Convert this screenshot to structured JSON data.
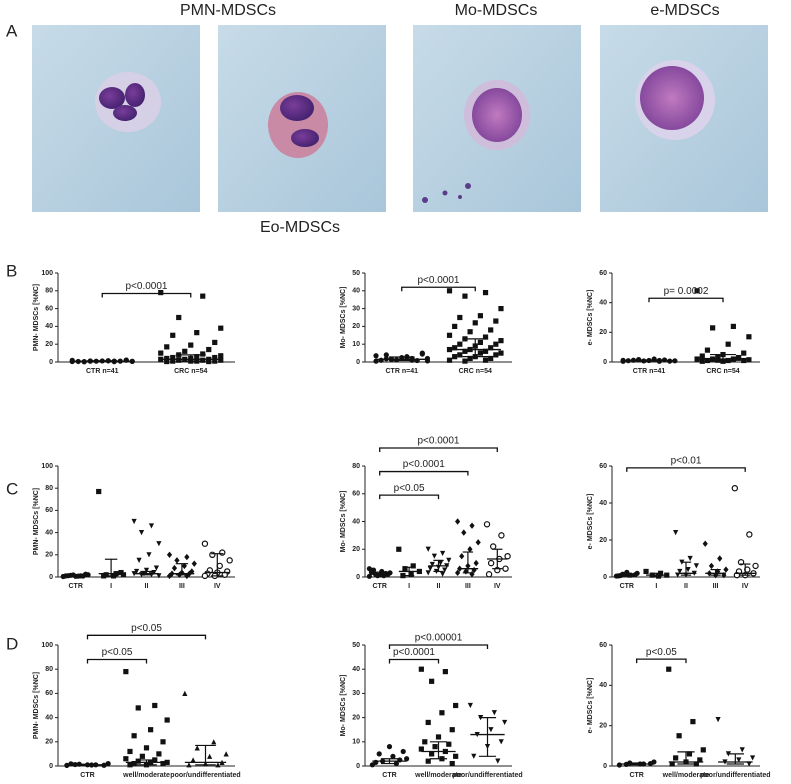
{
  "panel_labels": [
    "A",
    "B",
    "C",
    "D"
  ],
  "micrograph_labels": [
    "PMN-MDSCs",
    "Eo-MDSCs",
    "Mo-MDSCs",
    "e-MDSCs"
  ],
  "chart_data": [
    {
      "type": "dotplot",
      "ylabel": "PMN- MDSCs [%NC]",
      "ylim": [
        0,
        100
      ],
      "yticks": [
        0,
        20,
        40,
        60,
        80,
        100
      ],
      "groups": [
        {
          "name": "CTR n=41",
          "marker": "circle",
          "values": [
            0.5,
            1,
            1,
            0.8,
            1.5,
            0.3,
            2,
            1.2,
            0.6,
            1,
            0.9,
            1.8,
            0.4,
            1.1,
            0.7,
            1.3,
            0.5,
            2.2
          ],
          "median": 1,
          "q1": 0.5,
          "q3": 1.5
        },
        {
          "name": "CRC n=54",
          "marker": "square",
          "values": [
            78,
            74,
            50,
            38,
            33,
            30,
            22,
            19,
            17,
            14,
            12,
            10,
            9,
            8,
            7,
            6,
            5,
            5,
            4,
            4,
            3,
            3,
            3,
            2,
            2,
            2,
            1,
            1,
            1,
            1,
            0.5,
            0.5
          ],
          "median": 3,
          "q1": 1,
          "q3": 8
        }
      ],
      "brackets": [
        {
          "from": 0,
          "to": 1,
          "y": 77,
          "label": "p<0.0001"
        }
      ]
    },
    {
      "type": "dotplot",
      "ylabel": "Mo- MDSCs [%NC]",
      "ylim": [
        0,
        50
      ],
      "yticks": [
        0,
        10,
        20,
        30,
        40,
        50
      ],
      "groups": [
        {
          "name": "CTR n=41",
          "marker": "circle",
          "values": [
            0.5,
            1,
            1.5,
            2,
            3,
            4,
            5,
            2.5,
            1,
            0.8,
            1.2,
            3.5,
            2,
            1.5,
            0.6,
            2.8,
            1.8,
            4.5
          ],
          "median": 1.5,
          "q1": 0.8,
          "q3": 2.8
        },
        {
          "name": "CRC n=54",
          "marker": "square",
          "values": [
            40,
            39,
            37,
            30,
            26,
            25,
            23,
            22,
            20,
            18,
            17,
            15,
            14,
            13,
            12,
            11,
            10,
            10,
            9,
            8,
            8,
            7,
            7,
            6,
            6,
            5,
            5,
            4,
            4,
            3,
            3,
            2,
            2,
            1,
            1,
            0.5
          ],
          "median": 7,
          "q1": 3,
          "q3": 13
        }
      ],
      "brackets": [
        {
          "from": 0,
          "to": 1,
          "y": 42,
          "label": "p<0.0001"
        }
      ]
    },
    {
      "type": "dotplot",
      "ylabel": "e- MDSCs [%NC]",
      "ylim": [
        0,
        60
      ],
      "yticks": [
        0,
        20,
        40,
        60
      ],
      "groups": [
        {
          "name": "CTR n=41",
          "marker": "circle",
          "values": [
            0.5,
            1,
            1.5,
            0.8,
            2,
            1.2,
            0.6,
            1,
            0.9,
            1.4,
            0.7,
            1.1,
            0.5,
            1.6
          ],
          "median": 1,
          "q1": 0.6,
          "q3": 1.4
        },
        {
          "name": "CRC n=54",
          "marker": "square",
          "values": [
            48,
            24,
            23,
            17,
            12,
            8,
            6,
            5,
            4,
            3,
            3,
            2,
            2,
            2,
            1.5,
            1,
            1,
            1,
            0.5,
            0.5,
            2.5,
            1.2
          ],
          "median": 2,
          "q1": 1,
          "q3": 5
        }
      ],
      "brackets": [
        {
          "from": 0,
          "to": 1,
          "y": 43,
          "label": "p= 0.0002"
        }
      ]
    },
    {
      "type": "dotplot",
      "ylabel": "PMN- MDSCs [%NC]",
      "ylim": [
        0,
        100
      ],
      "yticks": [
        0,
        20,
        40,
        60,
        80,
        100
      ],
      "groups": [
        {
          "name": "CTR",
          "marker": "circle",
          "values": [
            0.5,
            1,
            1.5,
            2,
            0.8,
            1.2,
            2.5,
            0.6,
            1,
            0.9,
            1.8,
            0.4
          ],
          "median": 1,
          "q1": 0.6,
          "q3": 1.8
        },
        {
          "name": "I",
          "marker": "square",
          "values": [
            77,
            3,
            2,
            2,
            1,
            1,
            4
          ],
          "median": 3,
          "q1": 1,
          "q3": 16
        },
        {
          "name": "II",
          "marker": "triangle-down",
          "values": [
            50,
            46,
            40,
            30,
            20,
            15,
            8,
            6,
            5,
            4,
            3,
            3,
            2,
            2,
            1
          ],
          "median": 3,
          "q1": 2,
          "q3": 5
        },
        {
          "name": "III",
          "marker": "diamond",
          "values": [
            20,
            18,
            15,
            12,
            10,
            8,
            5,
            4,
            3,
            3,
            2,
            1,
            1
          ],
          "median": 3,
          "q1": 2,
          "q3": 12
        },
        {
          "name": "IV",
          "marker": "open-circle",
          "values": [
            30,
            22,
            20,
            15,
            10,
            6,
            5,
            4,
            3,
            2,
            1,
            1
          ],
          "median": 4,
          "q1": 1,
          "q3": 21
        }
      ],
      "brackets": []
    },
    {
      "type": "dotplot",
      "ylabel": "Mo- MDSCs [%NC]",
      "ylim": [
        0,
        80
      ],
      "yticks": [
        0,
        20,
        40,
        60,
        80
      ],
      "groups": [
        {
          "name": "CTR",
          "marker": "circle",
          "values": [
            0.5,
            1,
            2,
            3,
            4,
            5,
            2,
            1.5,
            3.5,
            2.5,
            1,
            6
          ],
          "median": 2,
          "q1": 1,
          "q3": 3.5
        },
        {
          "name": "I",
          "marker": "square",
          "values": [
            20,
            8,
            6,
            4,
            2,
            1
          ],
          "median": 4,
          "q1": 1,
          "q3": 7
        },
        {
          "name": "II",
          "marker": "triangle-down",
          "values": [
            20,
            17,
            15,
            12,
            10,
            9,
            8,
            7,
            6,
            5,
            4,
            3,
            2
          ],
          "median": 8,
          "q1": 4,
          "q3": 12
        },
        {
          "name": "III",
          "marker": "diamond",
          "values": [
            40,
            37,
            32,
            25,
            20,
            15,
            10,
            8,
            6,
            5,
            4,
            3,
            2
          ],
          "median": 6,
          "q1": 3,
          "q3": 18
        },
        {
          "name": "IV",
          "marker": "open-circle",
          "values": [
            38,
            30,
            22,
            15,
            13,
            10,
            6,
            5,
            2
          ],
          "median": 13,
          "q1": 6,
          "q3": 20
        }
      ],
      "brackets": [
        {
          "from": 0,
          "to": 4,
          "y": 93,
          "label": "p<0.0001"
        },
        {
          "from": 0,
          "to": 3,
          "y": 76,
          "label": "p<0.0001"
        },
        {
          "from": 0,
          "to": 2,
          "y": 59,
          "label": "p<0.05"
        }
      ]
    },
    {
      "type": "dotplot",
      "ylabel": "e- MDSCs [%NC]",
      "ylim": [
        0,
        60
      ],
      "yticks": [
        0,
        20,
        40,
        60
      ],
      "groups": [
        {
          "name": "CTR",
          "marker": "circle",
          "values": [
            0.5,
            1,
            1.5,
            2,
            1,
            0.8,
            1.2,
            2.5,
            0.6
          ],
          "median": 1,
          "q1": 0.6,
          "q3": 1.5
        },
        {
          "name": "I",
          "marker": "square",
          "values": [
            3,
            2,
            1,
            1,
            0.5
          ],
          "median": 1,
          "q1": 0.5,
          "q3": 2
        },
        {
          "name": "II",
          "marker": "triangle-down",
          "values": [
            24,
            10,
            8,
            6,
            4,
            3,
            2,
            1,
            1
          ],
          "median": 2,
          "q1": 1,
          "q3": 8
        },
        {
          "name": "III",
          "marker": "diamond",
          "values": [
            18,
            10,
            6,
            4,
            3,
            2,
            1,
            1
          ],
          "median": 2,
          "q1": 1,
          "q3": 4
        },
        {
          "name": "IV",
          "marker": "open-circle",
          "values": [
            48,
            23,
            8,
            6,
            4,
            3,
            2,
            1,
            1
          ],
          "median": 2,
          "q1": 1,
          "q3": 7
        }
      ],
      "brackets": [
        {
          "from": 0,
          "to": 4,
          "y": 59,
          "label": "p<0.01"
        }
      ]
    },
    {
      "type": "dotplot",
      "ylabel": "PMN- MDSCs [%NC]",
      "ylim": [
        0,
        100
      ],
      "yticks": [
        0,
        20,
        40,
        60,
        80,
        100
      ],
      "groups": [
        {
          "name": "CTR",
          "marker": "circle",
          "values": [
            0.5,
            1,
            1.5,
            2,
            0.8,
            1.2,
            0.6,
            1,
            1.8
          ],
          "median": 1,
          "q1": 0.6,
          "q3": 1.5
        },
        {
          "name": "well/moderate",
          "marker": "square",
          "values": [
            78,
            50,
            48,
            38,
            30,
            25,
            20,
            15,
            12,
            10,
            8,
            6,
            5,
            4,
            3,
            3,
            2,
            2,
            1,
            1
          ],
          "median": 3,
          "q1": 1,
          "q3": 5
        },
        {
          "name": "poor/undifferentiated",
          "marker": "triangle-up",
          "values": [
            60,
            20,
            15,
            10,
            8,
            5,
            3,
            2,
            1,
            1
          ],
          "median": 3,
          "q1": 1,
          "q3": 17
        }
      ],
      "brackets": [
        {
          "from": 0,
          "to": 2,
          "y": 108,
          "label": "p<0.05"
        },
        {
          "from": 0,
          "to": 1,
          "y": 88,
          "label": "p<0.05"
        }
      ]
    },
    {
      "type": "dotplot",
      "ylabel": "Mo- MDSCs [%NC]",
      "ylim": [
        0,
        50
      ],
      "yticks": [
        0,
        10,
        20,
        30,
        40,
        50
      ],
      "groups": [
        {
          "name": "CTR",
          "marker": "circle",
          "values": [
            0.5,
            1,
            2,
            3,
            4,
            5,
            6,
            8,
            1.5,
            2.5
          ],
          "median": 2,
          "q1": 1,
          "q3": 3
        },
        {
          "name": "well/moderate",
          "marker": "square",
          "values": [
            40,
            39,
            35,
            25,
            22,
            18,
            15,
            12,
            10,
            9,
            8,
            7,
            6,
            5,
            4,
            3,
            2,
            1
          ],
          "median": 6,
          "q1": 3,
          "q3": 10
        },
        {
          "name": "poor/undifferentiated",
          "marker": "triangle-down",
          "values": [
            25,
            22,
            20,
            18,
            15,
            13,
            10,
            8,
            4,
            2
          ],
          "median": 13,
          "q1": 4,
          "q3": 20
        }
      ],
      "brackets": [
        {
          "from": 0,
          "to": 2,
          "y": 50,
          "label": "p<0.00001"
        },
        {
          "from": 0,
          "to": 1,
          "y": 44,
          "label": "p<0.0001"
        }
      ]
    },
    {
      "type": "dotplot",
      "ylabel": "e- MDSCs [%NC]",
      "ylim": [
        0,
        60
      ],
      "yticks": [
        0,
        20,
        40,
        60
      ],
      "groups": [
        {
          "name": "CTR",
          "marker": "circle",
          "values": [
            0.5,
            1,
            1.5,
            2,
            1,
            0.8,
            1.2
          ],
          "median": 1,
          "q1": 0.6,
          "q3": 1.5
        },
        {
          "name": "well/moderate",
          "marker": "square",
          "values": [
            48,
            22,
            15,
            8,
            6,
            4,
            3,
            2,
            1,
            1
          ],
          "median": 2,
          "q1": 1,
          "q3": 7
        },
        {
          "name": "poor/undifferentiated",
          "marker": "triangle-down",
          "values": [
            23,
            8,
            6,
            4,
            3,
            2,
            1
          ],
          "median": 2,
          "q1": 1,
          "q3": 6
        }
      ],
      "brackets": [
        {
          "from": 0,
          "to": 1,
          "y": 53,
          "label": "p<0.05"
        }
      ]
    }
  ]
}
